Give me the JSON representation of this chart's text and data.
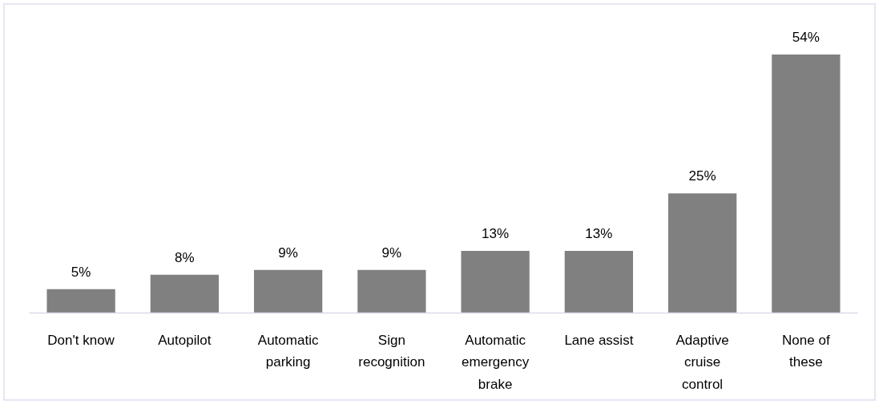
{
  "chart_data": {
    "type": "bar",
    "categories": [
      "Don't know",
      "Autopilot",
      "Automatic parking",
      "Sign recognition",
      "Automatic emergency brake",
      "Lane assist",
      "Adaptive cruise control",
      "None of these"
    ],
    "values": [
      5,
      8,
      9,
      9,
      13,
      13,
      25,
      54
    ],
    "value_labels": [
      "5%",
      "8%",
      "9%",
      "9%",
      "13%",
      "13%",
      "25%",
      "54%"
    ],
    "color": "#808080"
  }
}
